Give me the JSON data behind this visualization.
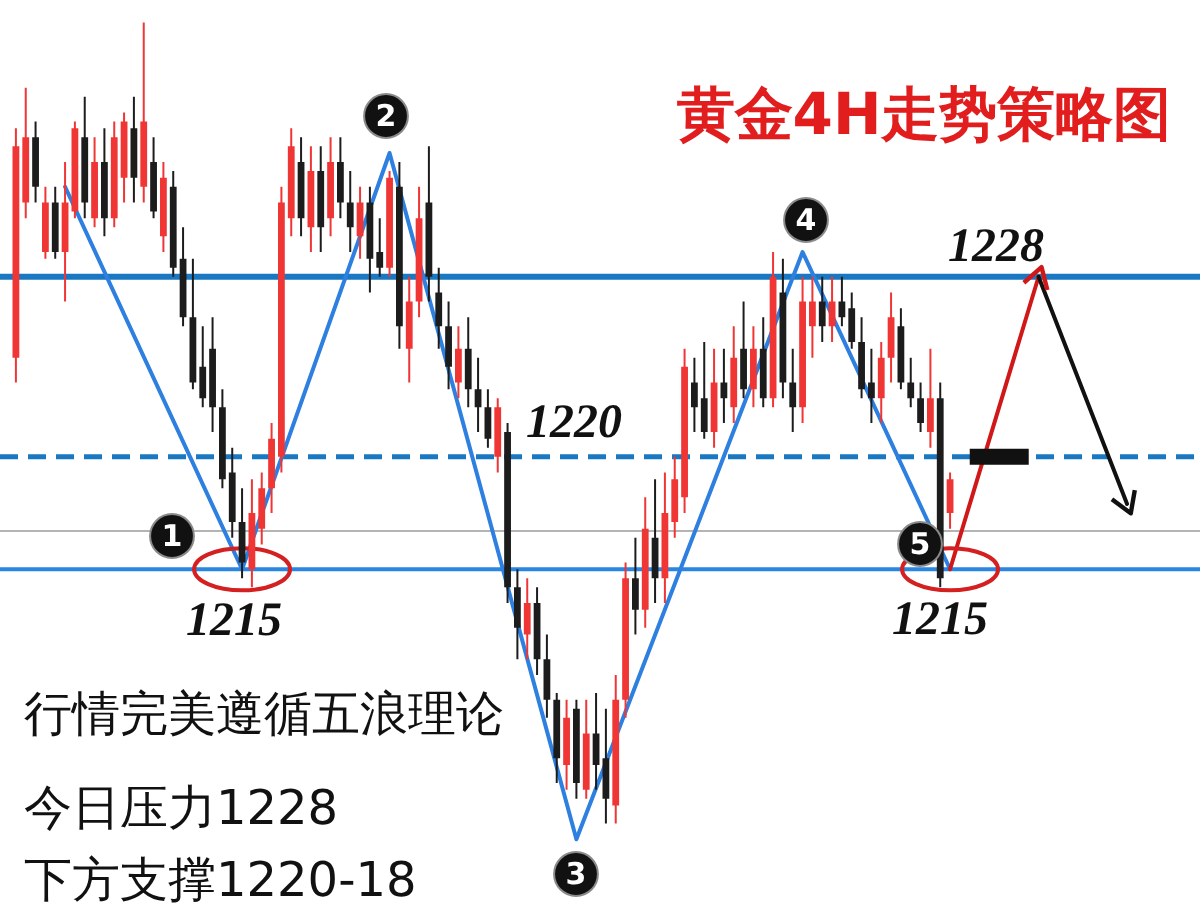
{
  "chart_data": {
    "type": "candlestick",
    "title": "黄金4H走势策略图",
    "tick_labels": false,
    "ylim": [
      1199.5,
      1240.3
    ],
    "categories": [
      null,
      null,
      null,
      null,
      null,
      null,
      null,
      null,
      null,
      null,
      null,
      null,
      null,
      null,
      null,
      null,
      null,
      null,
      null,
      null,
      null,
      null,
      null,
      null,
      null,
      null,
      null,
      null,
      null,
      null,
      null,
      null,
      null,
      null,
      null,
      null,
      null,
      null,
      null,
      null,
      null,
      null,
      null,
      null,
      null,
      null,
      null,
      null,
      null,
      null,
      null,
      null,
      null,
      null,
      null,
      null,
      null,
      null,
      null,
      null,
      null,
      null,
      null,
      null,
      null,
      null,
      null,
      null,
      null,
      null,
      null,
      null,
      null,
      null,
      null,
      null,
      null,
      null,
      null,
      null,
      null,
      null,
      null,
      null,
      null,
      null,
      null,
      null,
      null,
      null,
      null,
      null,
      null,
      null,
      null,
      null,
      null,
      null,
      null,
      null,
      null,
      null,
      null,
      null,
      null,
      null,
      null,
      null,
      null,
      null,
      null,
      null,
      null,
      null,
      null,
      null,
      null,
      null,
      null,
      null
    ],
    "ohlc": [
      [
        1224.4,
        1234.6,
        1223.3,
        1233.8
      ],
      [
        1231.3,
        1236.4,
        1230.6,
        1234.2
      ],
      [
        1234.2,
        1234.9,
        1231.3,
        1232.0
      ],
      [
        1229.1,
        1232.0,
        1228.8,
        1231.3
      ],
      [
        1231.3,
        1232.0,
        1228.8,
        1229.1
      ],
      [
        1229.1,
        1233.1,
        1226.9,
        1231.3
      ],
      [
        1230.9,
        1234.9,
        1230.6,
        1234.6
      ],
      [
        1234.2,
        1236.0,
        1230.6,
        1231.3
      ],
      [
        1230.6,
        1234.2,
        1230.2,
        1233.1
      ],
      [
        1233.1,
        1234.6,
        1229.8,
        1230.6
      ],
      [
        1230.6,
        1234.9,
        1230.2,
        1234.2
      ],
      [
        1232.4,
        1235.3,
        1231.3,
        1234.9
      ],
      [
        1234.6,
        1236.0,
        1231.3,
        1232.4
      ],
      [
        1232.0,
        1239.3,
        1231.3,
        1234.9
      ],
      [
        1233.1,
        1234.2,
        1230.6,
        1230.9
      ],
      [
        1229.8,
        1233.1,
        1229.1,
        1232.4
      ],
      [
        1232.0,
        1232.7,
        1228.0,
        1228.4
      ],
      [
        1228.8,
        1230.2,
        1225.8,
        1226.2
      ],
      [
        1226.2,
        1228.8,
        1223.0,
        1223.3
      ],
      [
        1224.0,
        1225.8,
        1222.2,
        1222.6
      ],
      [
        1224.8,
        1226.2,
        1221.1,
        1222.2
      ],
      [
        1222.2,
        1223.0,
        1218.6,
        1219.0
      ],
      [
        1219.3,
        1220.4,
        1216.4,
        1217.1
      ],
      [
        1217.1,
        1218.6,
        1214.6,
        1215.3
      ],
      [
        1215.0,
        1219.0,
        1214.2,
        1217.5
      ],
      [
        1216.8,
        1219.3,
        1216.1,
        1218.6
      ],
      [
        1218.6,
        1221.5,
        1217.5,
        1220.8
      ],
      [
        1220.0,
        1232.0,
        1219.3,
        1231.3
      ],
      [
        1230.6,
        1234.6,
        1229.8,
        1233.8
      ],
      [
        1233.1,
        1234.2,
        1229.8,
        1230.6
      ],
      [
        1230.2,
        1233.8,
        1229.1,
        1232.7
      ],
      [
        1232.7,
        1233.8,
        1229.1,
        1230.2
      ],
      [
        1230.6,
        1234.2,
        1229.8,
        1233.1
      ],
      [
        1233.1,
        1234.2,
        1230.6,
        1231.3
      ],
      [
        1231.3,
        1232.7,
        1229.1,
        1230.2
      ],
      [
        1229.8,
        1232.0,
        1228.8,
        1231.3
      ],
      [
        1231.3,
        1232.0,
        1227.3,
        1228.8
      ],
      [
        1229.1,
        1230.6,
        1228.0,
        1228.4
      ],
      [
        1228.4,
        1232.7,
        1228.0,
        1232.4
      ],
      [
        1232.0,
        1233.1,
        1224.8,
        1225.8
      ],
      [
        1224.8,
        1228.0,
        1223.3,
        1226.9
      ],
      [
        1226.9,
        1232.0,
        1226.2,
        1230.6
      ],
      [
        1231.3,
        1233.8,
        1226.9,
        1228.0
      ],
      [
        1227.3,
        1228.4,
        1224.8,
        1225.8
      ],
      [
        1225.8,
        1226.9,
        1223.0,
        1224.0
      ],
      [
        1223.3,
        1225.8,
        1222.6,
        1224.8
      ],
      [
        1224.8,
        1226.2,
        1222.2,
        1223.0
      ],
      [
        1223.0,
        1224.4,
        1221.1,
        1222.2
      ],
      [
        1222.2,
        1223.0,
        1220.4,
        1220.8
      ],
      [
        1220.0,
        1222.6,
        1219.3,
        1222.2
      ],
      [
        1221.1,
        1221.5,
        1213.5,
        1214.2
      ],
      [
        1214.2,
        1215.0,
        1211.0,
        1212.4
      ],
      [
        1212.1,
        1214.6,
        1211.0,
        1213.5
      ],
      [
        1213.5,
        1214.2,
        1210.3,
        1211.0
      ],
      [
        1211.0,
        1212.1,
        1208.4,
        1209.2
      ],
      [
        1209.2,
        1209.5,
        1205.5,
        1206.6
      ],
      [
        1206.3,
        1209.2,
        1205.2,
        1208.4
      ],
      [
        1208.8,
        1209.2,
        1204.8,
        1205.5
      ],
      [
        1205.2,
        1209.2,
        1204.8,
        1207.7
      ],
      [
        1207.7,
        1209.5,
        1205.2,
        1206.3
      ],
      [
        1206.6,
        1208.8,
        1203.7,
        1204.8
      ],
      [
        1204.5,
        1210.3,
        1203.7,
        1209.2
      ],
      [
        1209.2,
        1215.3,
        1208.4,
        1214.6
      ],
      [
        1214.6,
        1216.4,
        1212.1,
        1213.2
      ],
      [
        1213.2,
        1218.2,
        1212.4,
        1216.8
      ],
      [
        1216.4,
        1219.0,
        1213.5,
        1214.6
      ],
      [
        1214.6,
        1219.3,
        1213.5,
        1217.5
      ],
      [
        1217.1,
        1220.0,
        1216.4,
        1219.0
      ],
      [
        1218.2,
        1224.8,
        1217.5,
        1224.0
      ],
      [
        1223.3,
        1224.4,
        1221.1,
        1222.2
      ],
      [
        1222.6,
        1225.1,
        1220.8,
        1221.1
      ],
      [
        1221.1,
        1224.8,
        1220.4,
        1223.3
      ],
      [
        1223.3,
        1224.8,
        1221.5,
        1222.6
      ],
      [
        1222.2,
        1225.8,
        1221.5,
        1224.4
      ],
      [
        1224.8,
        1226.9,
        1222.6,
        1223.0
      ],
      [
        1223.0,
        1225.8,
        1222.2,
        1224.8
      ],
      [
        1224.8,
        1226.2,
        1222.2,
        1222.6
      ],
      [
        1222.6,
        1229.1,
        1222.2,
        1228.0
      ],
      [
        1227.3,
        1228.8,
        1222.6,
        1223.3
      ],
      [
        1223.3,
        1224.8,
        1221.1,
        1222.2
      ],
      [
        1222.2,
        1228.0,
        1221.5,
        1226.9
      ],
      [
        1225.8,
        1228.0,
        1224.4,
        1226.9
      ],
      [
        1226.9,
        1228.0,
        1225.1,
        1225.8
      ],
      [
        1225.8,
        1228.0,
        1225.1,
        1226.9
      ],
      [
        1226.9,
        1228.0,
        1225.8,
        1226.2
      ],
      [
        1226.6,
        1227.3,
        1224.8,
        1225.1
      ],
      [
        1225.1,
        1226.2,
        1222.6,
        1223.0
      ],
      [
        1223.3,
        1224.8,
        1221.5,
        1222.6
      ],
      [
        1222.6,
        1225.1,
        1221.5,
        1224.4
      ],
      [
        1224.4,
        1227.3,
        1223.3,
        1226.2
      ],
      [
        1225.8,
        1226.6,
        1223.0,
        1223.3
      ],
      [
        1223.3,
        1224.4,
        1222.2,
        1222.6
      ],
      [
        1222.6,
        1223.3,
        1221.1,
        1221.5
      ],
      [
        1221.1,
        1224.8,
        1220.4,
        1222.6
      ],
      [
        1222.6,
        1223.3,
        1214.2,
        1214.6
      ],
      [
        1217.5,
        1219.3,
        1216.8,
        1219.0
      ],
      null,
      null,
      null,
      null,
      null,
      null,
      null,
      null,
      null,
      null,
      null,
      null,
      null,
      null,
      null,
      null,
      null,
      null,
      null,
      null,
      null,
      null,
      null,
      null
    ],
    "colors": [
      "#f03535",
      "#f03535",
      "#1c1c1c",
      "#f03535",
      "#1c1c1c",
      "#f03535",
      "#f03535",
      "#1c1c1c",
      "#f03535",
      "#1c1c1c",
      "#f03535",
      "#f03535",
      "#1c1c1c",
      "#f03535",
      "#1c1c1c",
      "#f03535",
      "#1c1c1c",
      "#1c1c1c",
      "#1c1c1c",
      "#1c1c1c",
      "#1c1c1c",
      "#1c1c1c",
      "#1c1c1c",
      "#1c1c1c",
      "#f03535",
      "#f03535",
      "#f03535",
      "#f03535",
      "#f03535",
      "#1c1c1c",
      "#f03535",
      "#1c1c1c",
      "#f03535",
      "#1c1c1c",
      "#1c1c1c",
      "#f03535",
      "#1c1c1c",
      "#1c1c1c",
      "#f03535",
      "#1c1c1c",
      "#f03535",
      "#f03535",
      "#1c1c1c",
      "#1c1c1c",
      "#1c1c1c",
      "#f03535",
      "#1c1c1c",
      "#1c1c1c",
      "#1c1c1c",
      "#f03535",
      "#1c1c1c",
      "#1c1c1c",
      "#f03535",
      "#1c1c1c",
      "#1c1c1c",
      "#1c1c1c",
      "#f03535",
      "#1c1c1c",
      "#f03535",
      "#1c1c1c",
      "#1c1c1c",
      "#f03535",
      "#f03535",
      "#1c1c1c",
      "#f03535",
      "#1c1c1c",
      "#f03535",
      "#f03535",
      "#f03535",
      "#1c1c1c",
      "#1c1c1c",
      "#f03535",
      "#1c1c1c",
      "#f03535",
      "#1c1c1c",
      "#f03535",
      "#1c1c1c",
      "#f03535",
      "#1c1c1c",
      "#1c1c1c",
      "#f03535",
      "#f03535",
      "#1c1c1c",
      "#f03535",
      "#1c1c1c",
      "#1c1c1c",
      "#1c1c1c",
      "#1c1c1c",
      "#f03535",
      "#f03535",
      "#1c1c1c",
      "#1c1c1c",
      "#1c1c1c",
      "#f03535",
      "#1c1c1c",
      "#f03535",
      null,
      null,
      null,
      null,
      null,
      null,
      null,
      null,
      null,
      null,
      null,
      null,
      null,
      null,
      null,
      null,
      null,
      null,
      null,
      null,
      null,
      null,
      null,
      null
    ],
    "series": [
      {
        "type": "line",
        "color": "#2d7fe0",
        "values": [
          null,
          null,
          null,
          null,
          null,
          1232.0,
          null,
          null,
          null,
          null,
          null,
          null,
          null,
          null,
          null,
          null,
          null,
          null,
          null,
          null,
          null,
          null,
          null,
          1215.0,
          null,
          null,
          null,
          null,
          null,
          null,
          null,
          null,
          null,
          null,
          null,
          null,
          null,
          null,
          1233.5,
          null,
          null,
          null,
          null,
          null,
          null,
          null,
          null,
          null,
          null,
          null,
          null,
          null,
          null,
          null,
          null,
          null,
          null,
          1203.0,
          null,
          null,
          null,
          null,
          null,
          null,
          null,
          null,
          null,
          null,
          null,
          null,
          null,
          null,
          null,
          null,
          null,
          null,
          null,
          null,
          null,
          null,
          1229.1,
          null,
          null,
          null,
          null,
          null,
          null,
          null,
          null,
          null,
          null,
          null,
          null,
          null,
          null,
          1215.0,
          null,
          null,
          null,
          null,
          null,
          null,
          null,
          null,
          null,
          null,
          null,
          null,
          null,
          null,
          null,
          null,
          null,
          null,
          null,
          null,
          null,
          null,
          null,
          null
        ]
      },
      {
        "type": "line",
        "color": "#d01818",
        "values": [
          null,
          null,
          null,
          null,
          null,
          null,
          null,
          null,
          null,
          null,
          null,
          null,
          null,
          null,
          null,
          null,
          null,
          null,
          null,
          null,
          null,
          null,
          null,
          null,
          null,
          null,
          null,
          null,
          null,
          null,
          null,
          null,
          null,
          null,
          null,
          null,
          null,
          null,
          null,
          null,
          null,
          null,
          null,
          null,
          null,
          null,
          null,
          null,
          null,
          null,
          null,
          null,
          null,
          null,
          null,
          null,
          null,
          null,
          null,
          null,
          null,
          null,
          null,
          null,
          null,
          null,
          null,
          null,
          null,
          null,
          null,
          null,
          null,
          null,
          null,
          null,
          null,
          null,
          null,
          null,
          null,
          null,
          null,
          null,
          null,
          null,
          null,
          null,
          null,
          null,
          null,
          null,
          null,
          null,
          null,
          1215.0,
          null,
          null,
          null,
          null,
          null,
          null,
          null,
          null,
          1228.0,
          null,
          null,
          null,
          null,
          null,
          null,
          null,
          null,
          null,
          null,
          null,
          null,
          null,
          null,
          null
        ]
      },
      {
        "type": "line",
        "color": "#111111",
        "values": [
          null,
          null,
          null,
          null,
          null,
          null,
          null,
          null,
          null,
          null,
          null,
          null,
          null,
          null,
          null,
          null,
          null,
          null,
          null,
          null,
          null,
          null,
          null,
          null,
          null,
          null,
          null,
          null,
          null,
          null,
          null,
          null,
          null,
          null,
          null,
          null,
          null,
          null,
          null,
          null,
          null,
          null,
          null,
          null,
          null,
          null,
          null,
          null,
          null,
          null,
          null,
          null,
          null,
          null,
          null,
          null,
          null,
          null,
          null,
          null,
          null,
          null,
          null,
          null,
          null,
          null,
          null,
          null,
          null,
          null,
          null,
          null,
          null,
          null,
          null,
          null,
          null,
          null,
          null,
          null,
          null,
          null,
          null,
          null,
          null,
          null,
          null,
          null,
          null,
          null,
          null,
          null,
          null,
          null,
          null,
          null,
          null,
          null,
          null,
          null,
          null,
          null,
          null,
          null,
          1228.0,
          null,
          null,
          null,
          null,
          null,
          null,
          null,
          null,
          1217.9,
          null,
          null,
          null,
          null,
          null,
          null
        ]
      },
      {
        "type": "line",
        "color": "#111111",
        "values": [
          null,
          null,
          null,
          null,
          null,
          null,
          null,
          null,
          null,
          null,
          null,
          null,
          null,
          null,
          null,
          null,
          null,
          null,
          null,
          null,
          null,
          null,
          null,
          null,
          null,
          null,
          null,
          null,
          null,
          null,
          null,
          null,
          null,
          null,
          null,
          null,
          null,
          null,
          null,
          null,
          null,
          null,
          null,
          null,
          null,
          null,
          null,
          null,
          null,
          null,
          null,
          null,
          null,
          null,
          null,
          null,
          null,
          null,
          null,
          null,
          null,
          null,
          null,
          null,
          null,
          null,
          null,
          null,
          null,
          null,
          null,
          null,
          null,
          null,
          null,
          null,
          null,
          null,
          null,
          null,
          null,
          null,
          null,
          null,
          null,
          null,
          null,
          null,
          null,
          null,
          null,
          null,
          null,
          null,
          null,
          null,
          null,
          1220.0,
          null,
          null,
          null,
          null,
          null,
          1220.0,
          null,
          null,
          null,
          null,
          null,
          null,
          null,
          null,
          null,
          null,
          null,
          null,
          null,
          null,
          null,
          null
        ]
      }
    ],
    "ref_lines": [
      {
        "axis": "y",
        "value": 1228,
        "label": "1228",
        "color": "#1a78c2",
        "line_style": "solid"
      },
      {
        "axis": "y",
        "value": 1220,
        "label": "1220",
        "color": "#1a78c2",
        "line_style": "dashed"
      },
      {
        "axis": "y",
        "value": 1215,
        "label": "1215",
        "color": "#2a86e0",
        "line_style": "solid"
      },
      {
        "axis": "y",
        "value": 1216.7,
        "color": "#b4b4b4",
        "line_style": "solid"
      }
    ],
    "annotations": [
      "1",
      "2",
      "3",
      "4",
      "5",
      "1215",
      "行情完美遵循五浪理论",
      "今日压力1228",
      "下方支撑1220-18"
    ]
  }
}
